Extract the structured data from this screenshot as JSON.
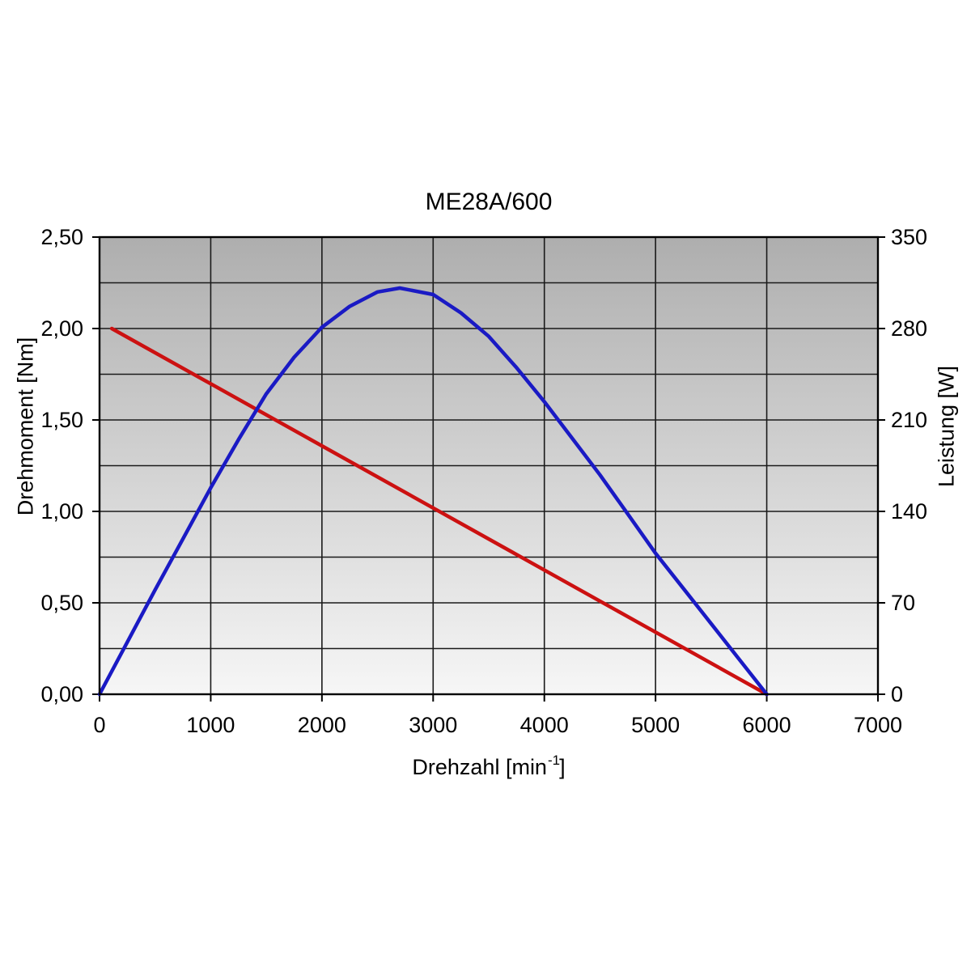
{
  "chart_data": {
    "type": "line",
    "title": "ME28A/600",
    "x_axis": {
      "label_prefix": "Drehzahl [min",
      "label_sup": "-1",
      "label_suffix": "]",
      "min": 0,
      "max": 7000,
      "ticks": [
        {
          "value": 0,
          "label": "0"
        },
        {
          "value": 1000,
          "label": "1000"
        },
        {
          "value": 2000,
          "label": "2000"
        },
        {
          "value": 3000,
          "label": "3000"
        },
        {
          "value": 4000,
          "label": "4000"
        },
        {
          "value": 5000,
          "label": "5000"
        },
        {
          "value": 6000,
          "label": "6000"
        },
        {
          "value": 7000,
          "label": "7000"
        }
      ],
      "gridline_step": 1000
    },
    "y_left": {
      "label": "Drehmoment [Nm]",
      "min": 0,
      "max": 2.5,
      "ticks": [
        {
          "value": 0.0,
          "label": "0,00"
        },
        {
          "value": 0.5,
          "label": "0,50"
        },
        {
          "value": 1.0,
          "label": "1,00"
        },
        {
          "value": 1.5,
          "label": "1,50"
        },
        {
          "value": 2.0,
          "label": "2,00"
        },
        {
          "value": 2.5,
          "label": "2,50"
        }
      ],
      "gridline_step": 0.25
    },
    "y_right": {
      "label": "Leistung [W]",
      "min": 0,
      "max": 350,
      "ticks": [
        {
          "value": 0,
          "label": "0"
        },
        {
          "value": 70,
          "label": "70"
        },
        {
          "value": 140,
          "label": "140"
        },
        {
          "value": 210,
          "label": "210"
        },
        {
          "value": 280,
          "label": "280"
        },
        {
          "value": 350,
          "label": "350"
        }
      ]
    },
    "series": [
      {
        "name": "Drehmoment [Nm]",
        "axis": "left",
        "color": "#cc1111",
        "points": [
          [
            110,
            2.0
          ],
          [
            6000,
            0.0
          ]
        ]
      },
      {
        "name": "Leistung [W]",
        "axis": "right",
        "color": "#1a1ac4",
        "points": [
          [
            0,
            0
          ],
          [
            250,
            40
          ],
          [
            500,
            80
          ],
          [
            750,
            119
          ],
          [
            1000,
            158
          ],
          [
            1250,
            195
          ],
          [
            1500,
            230
          ],
          [
            1750,
            258
          ],
          [
            2000,
            281
          ],
          [
            2250,
            297
          ],
          [
            2500,
            308
          ],
          [
            2700,
            311
          ],
          [
            3000,
            306
          ],
          [
            3250,
            292
          ],
          [
            3500,
            274
          ],
          [
            3750,
            250
          ],
          [
            4000,
            224
          ],
          [
            4250,
            196
          ],
          [
            4500,
            168
          ],
          [
            4750,
            138
          ],
          [
            5000,
            108
          ],
          [
            5250,
            81
          ],
          [
            5500,
            54
          ],
          [
            5750,
            27
          ],
          [
            6000,
            0
          ]
        ]
      }
    ],
    "plot_background": {
      "gradient_top": "#aeaeae",
      "gradient_bottom": "#f6f6f6"
    },
    "gridline_color": "#1a1a1a",
    "border_color": "#000000",
    "legend": "none",
    "grid": "on"
  }
}
